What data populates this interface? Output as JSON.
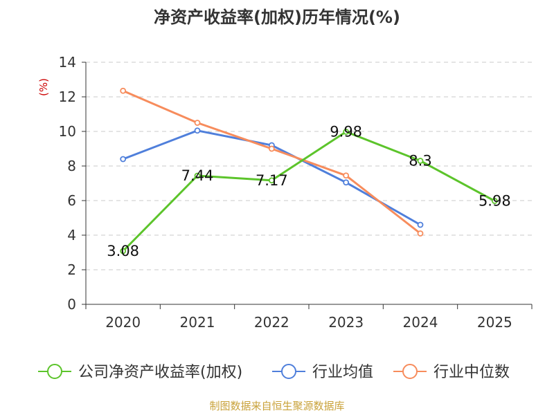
{
  "chart_data": {
    "type": "line",
    "title": "净资产收益率(加权)历年情况(%)",
    "ylabel": "(%)",
    "xlabel": "",
    "categories": [
      "2020",
      "2021",
      "2022",
      "2023",
      "2024",
      "2025"
    ],
    "ylim": [
      0,
      14
    ],
    "yticks": [
      0,
      2,
      4,
      6,
      8,
      10,
      12,
      14
    ],
    "grid": true,
    "legend_position": "bottom",
    "series": [
      {
        "name": "公司净资产收益率(加权)",
        "color": "#5cc42b",
        "values": [
          3.08,
          7.44,
          7.17,
          9.98,
          8.3,
          5.98
        ],
        "labels": [
          "3.08",
          "7.44",
          "7.17",
          "9.98",
          "8.3",
          "5.98"
        ]
      },
      {
        "name": "行业均值",
        "color": "#4f7fdb",
        "values": [
          8.4,
          10.05,
          9.2,
          7.05,
          4.6,
          null
        ]
      },
      {
        "name": "行业中位数",
        "color": "#f78c5c",
        "values": [
          12.35,
          10.5,
          9.0,
          7.45,
          4.1,
          null
        ]
      }
    ],
    "source": "制图数据来自恒生聚源数据库"
  }
}
